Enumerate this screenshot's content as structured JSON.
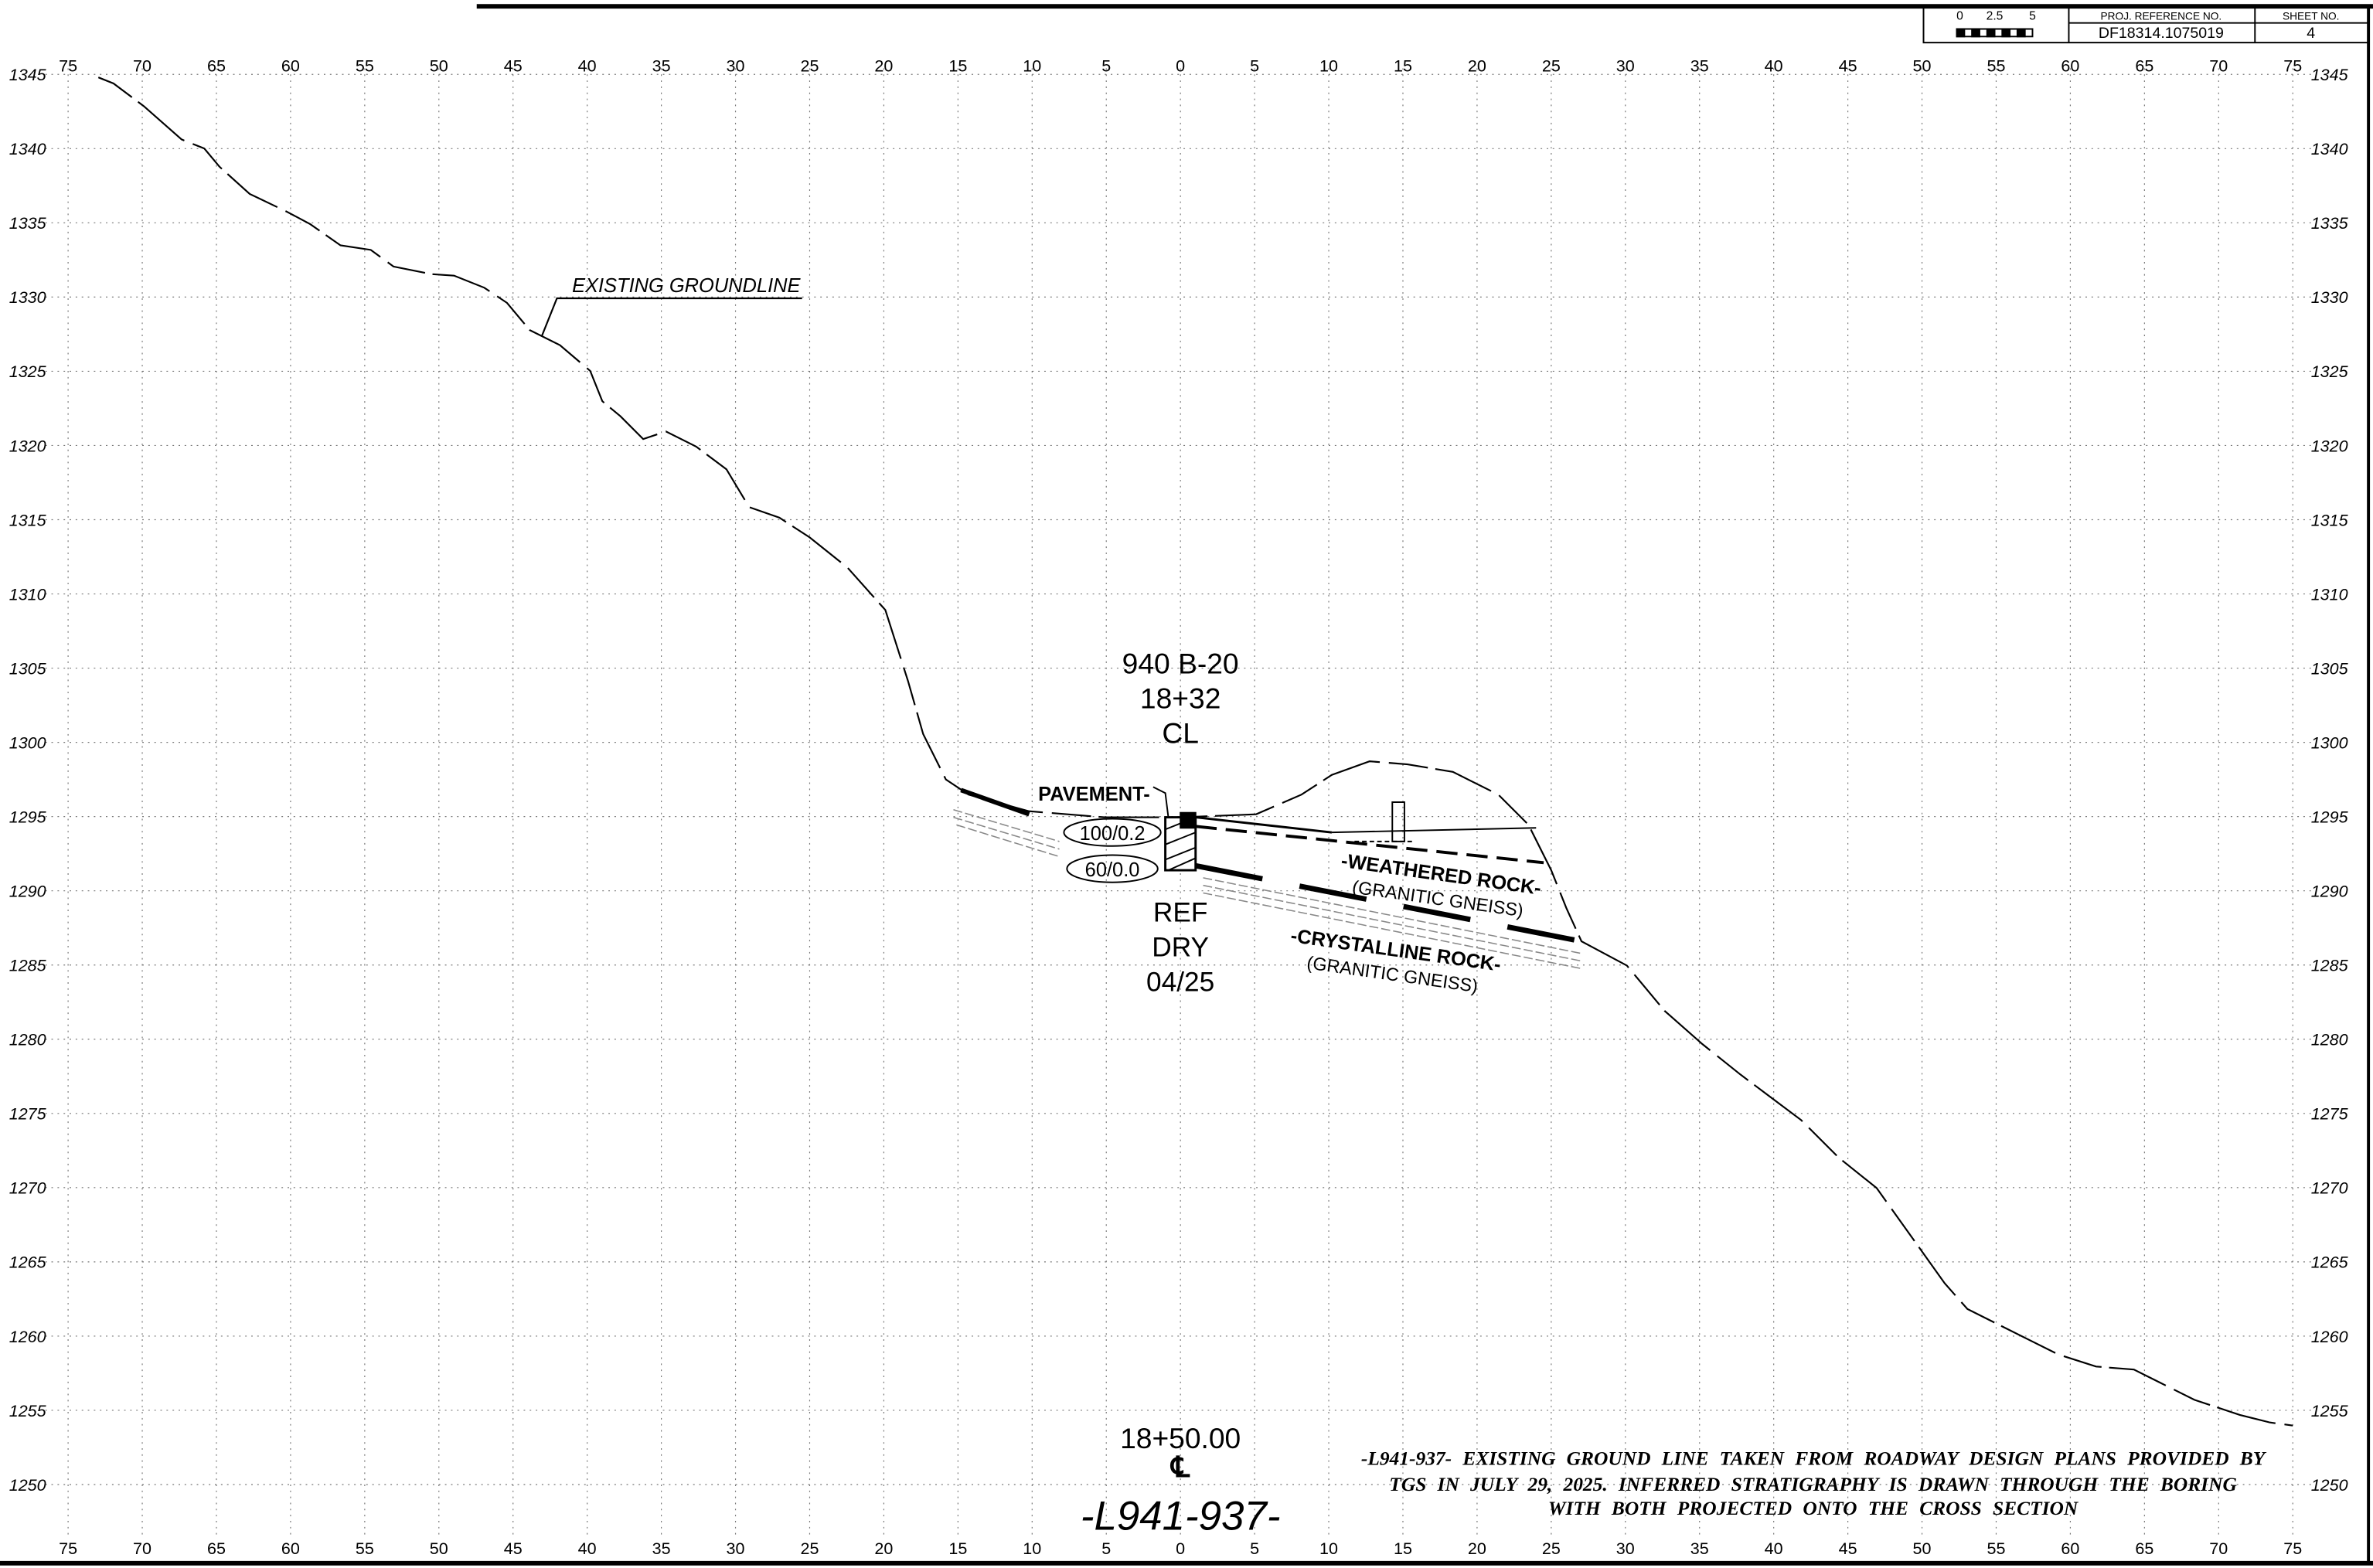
{
  "header": {
    "scale_ticks": [
      0,
      2.5,
      5
    ],
    "proj_reference_label": "PROJ. REFERENCE NO.",
    "proj_reference_no": "DF18314.1075019",
    "sheet_label": "SHEET NO.",
    "sheet_no": "4"
  },
  "grid": {
    "offsets": [
      75,
      70,
      65,
      60,
      55,
      50,
      45,
      40,
      35,
      30,
      25,
      20,
      15,
      10,
      5,
      0,
      5,
      10,
      15,
      20,
      25,
      30,
      35,
      40,
      45,
      50,
      55,
      60,
      65,
      70,
      75
    ],
    "elevations": [
      1345,
      1340,
      1335,
      1330,
      1325,
      1320,
      1315,
      1310,
      1305,
      1300,
      1295,
      1290,
      1285,
      1280,
      1275,
      1270,
      1265,
      1260,
      1255,
      1250
    ]
  },
  "annotations": {
    "groundline": "EXISTING GROUNDLINE",
    "boring_id": "940 B-20",
    "boring_station": "18+32",
    "boring_offset": "CL",
    "pavement": "PAVEMENT-",
    "sample_1": "100/0.2",
    "sample_2": "60/0.0",
    "ref": "REF",
    "dry": "DRY",
    "date": "04/25",
    "weathered_rock": "-WEATHERED ROCK-",
    "weathered_rock_type": "(GRANITIC GNEISS)",
    "crystalline_rock": "-CRYSTALLINE ROCK-",
    "crystalline_rock_type": "(GRANITIC GNEISS)",
    "station": "18+50.00",
    "centerline": "℄",
    "alignment": "-L941-937-"
  },
  "note": [
    "-L941-937- EXISTING GROUND LINE TAKEN FROM ROADWAY DESIGN PLANS PROVIDED BY",
    "TGS IN JULY 29, 2025. INFERRED STRATIGRAPHY IS DRAWN THROUGH THE BORING",
    "WITH BOTH PROJECTED ONTO THE CROSS SECTION"
  ]
}
